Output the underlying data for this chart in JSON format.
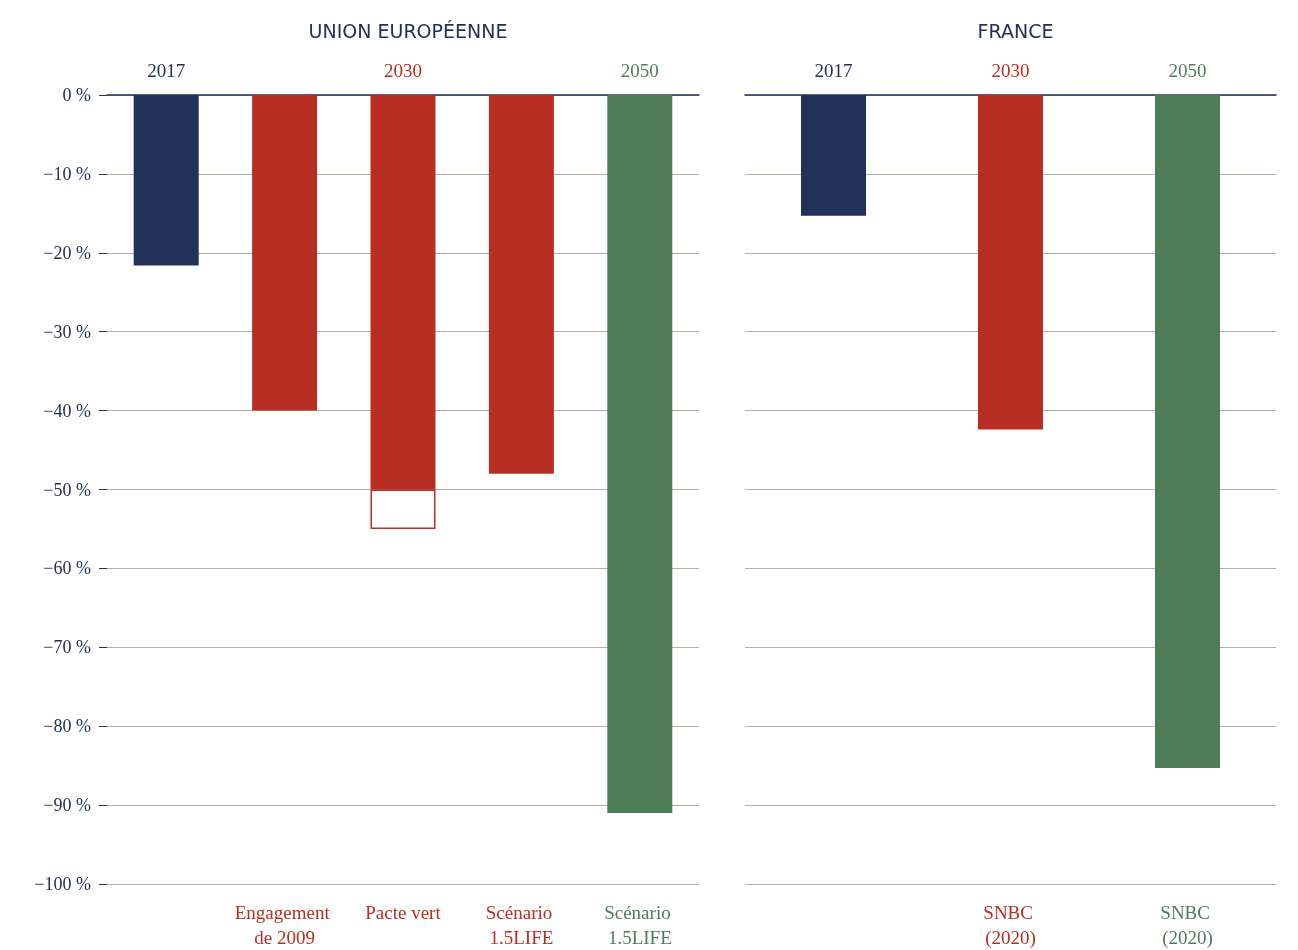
{
  "chart_data": [
    {
      "type": "bar",
      "title": "UNION EUROPÉENNE",
      "categories": [
        null,
        "Engagement de 2009",
        "Pacte vert",
        "Scénario 1.5LIFE",
        "Scénario 1.5LIFE"
      ],
      "stacked": true,
      "series": [
        {
          "values": [
            -21.6,
            -40,
            -50,
            -48,
            -91
          ],
          "colors": [
            "#22315a",
            "#b82e22",
            "#b82e22",
            "#b82e22",
            "#4e7d58"
          ]
        },
        {
          "values": [
            null,
            null,
            -5,
            null,
            null
          ],
          "color": "#b82e22"
        }
      ],
      "annotations": [
        "2017",
        "2030",
        "2050"
      ],
      "ylim": [
        -100,
        0
      ],
      "yticks": [
        {
          "value": 0,
          "label": "0 %"
        },
        {
          "value": -10,
          "label": "−10 %"
        },
        {
          "value": -20,
          "label": "−20 %"
        },
        {
          "value": -30,
          "label": "−30 %"
        },
        {
          "value": -40,
          "label": "−40 %"
        },
        {
          "value": -50,
          "label": "−50 %"
        },
        {
          "value": -60,
          "label": "−60 %"
        },
        {
          "value": -70,
          "label": "−70 %"
        },
        {
          "value": -80,
          "label": "−80 %"
        },
        {
          "value": -90,
          "label": "−90 %"
        },
        {
          "value": -100,
          "label": "−100 %"
        }
      ],
      "grid": "y"
    },
    {
      "type": "bar",
      "title": "FRANCE",
      "categories": [
        null,
        "SNBC (2020)",
        "SNBC (2020)"
      ],
      "values": [
        -15.3,
        -42.4,
        -85.3
      ],
      "colors": [
        "#22315a",
        "#b82e22",
        "#4e7d58"
      ],
      "annotations": [
        "2017",
        "2030",
        "2050"
      ],
      "ylim": [
        -100,
        0
      ],
      "yticks": [
        0,
        -10,
        -20,
        -30,
        -40,
        -50,
        -60,
        -70,
        -80,
        -90,
        -100
      ],
      "grid": "y",
      "tick_labels": "x"
    }
  ]
}
